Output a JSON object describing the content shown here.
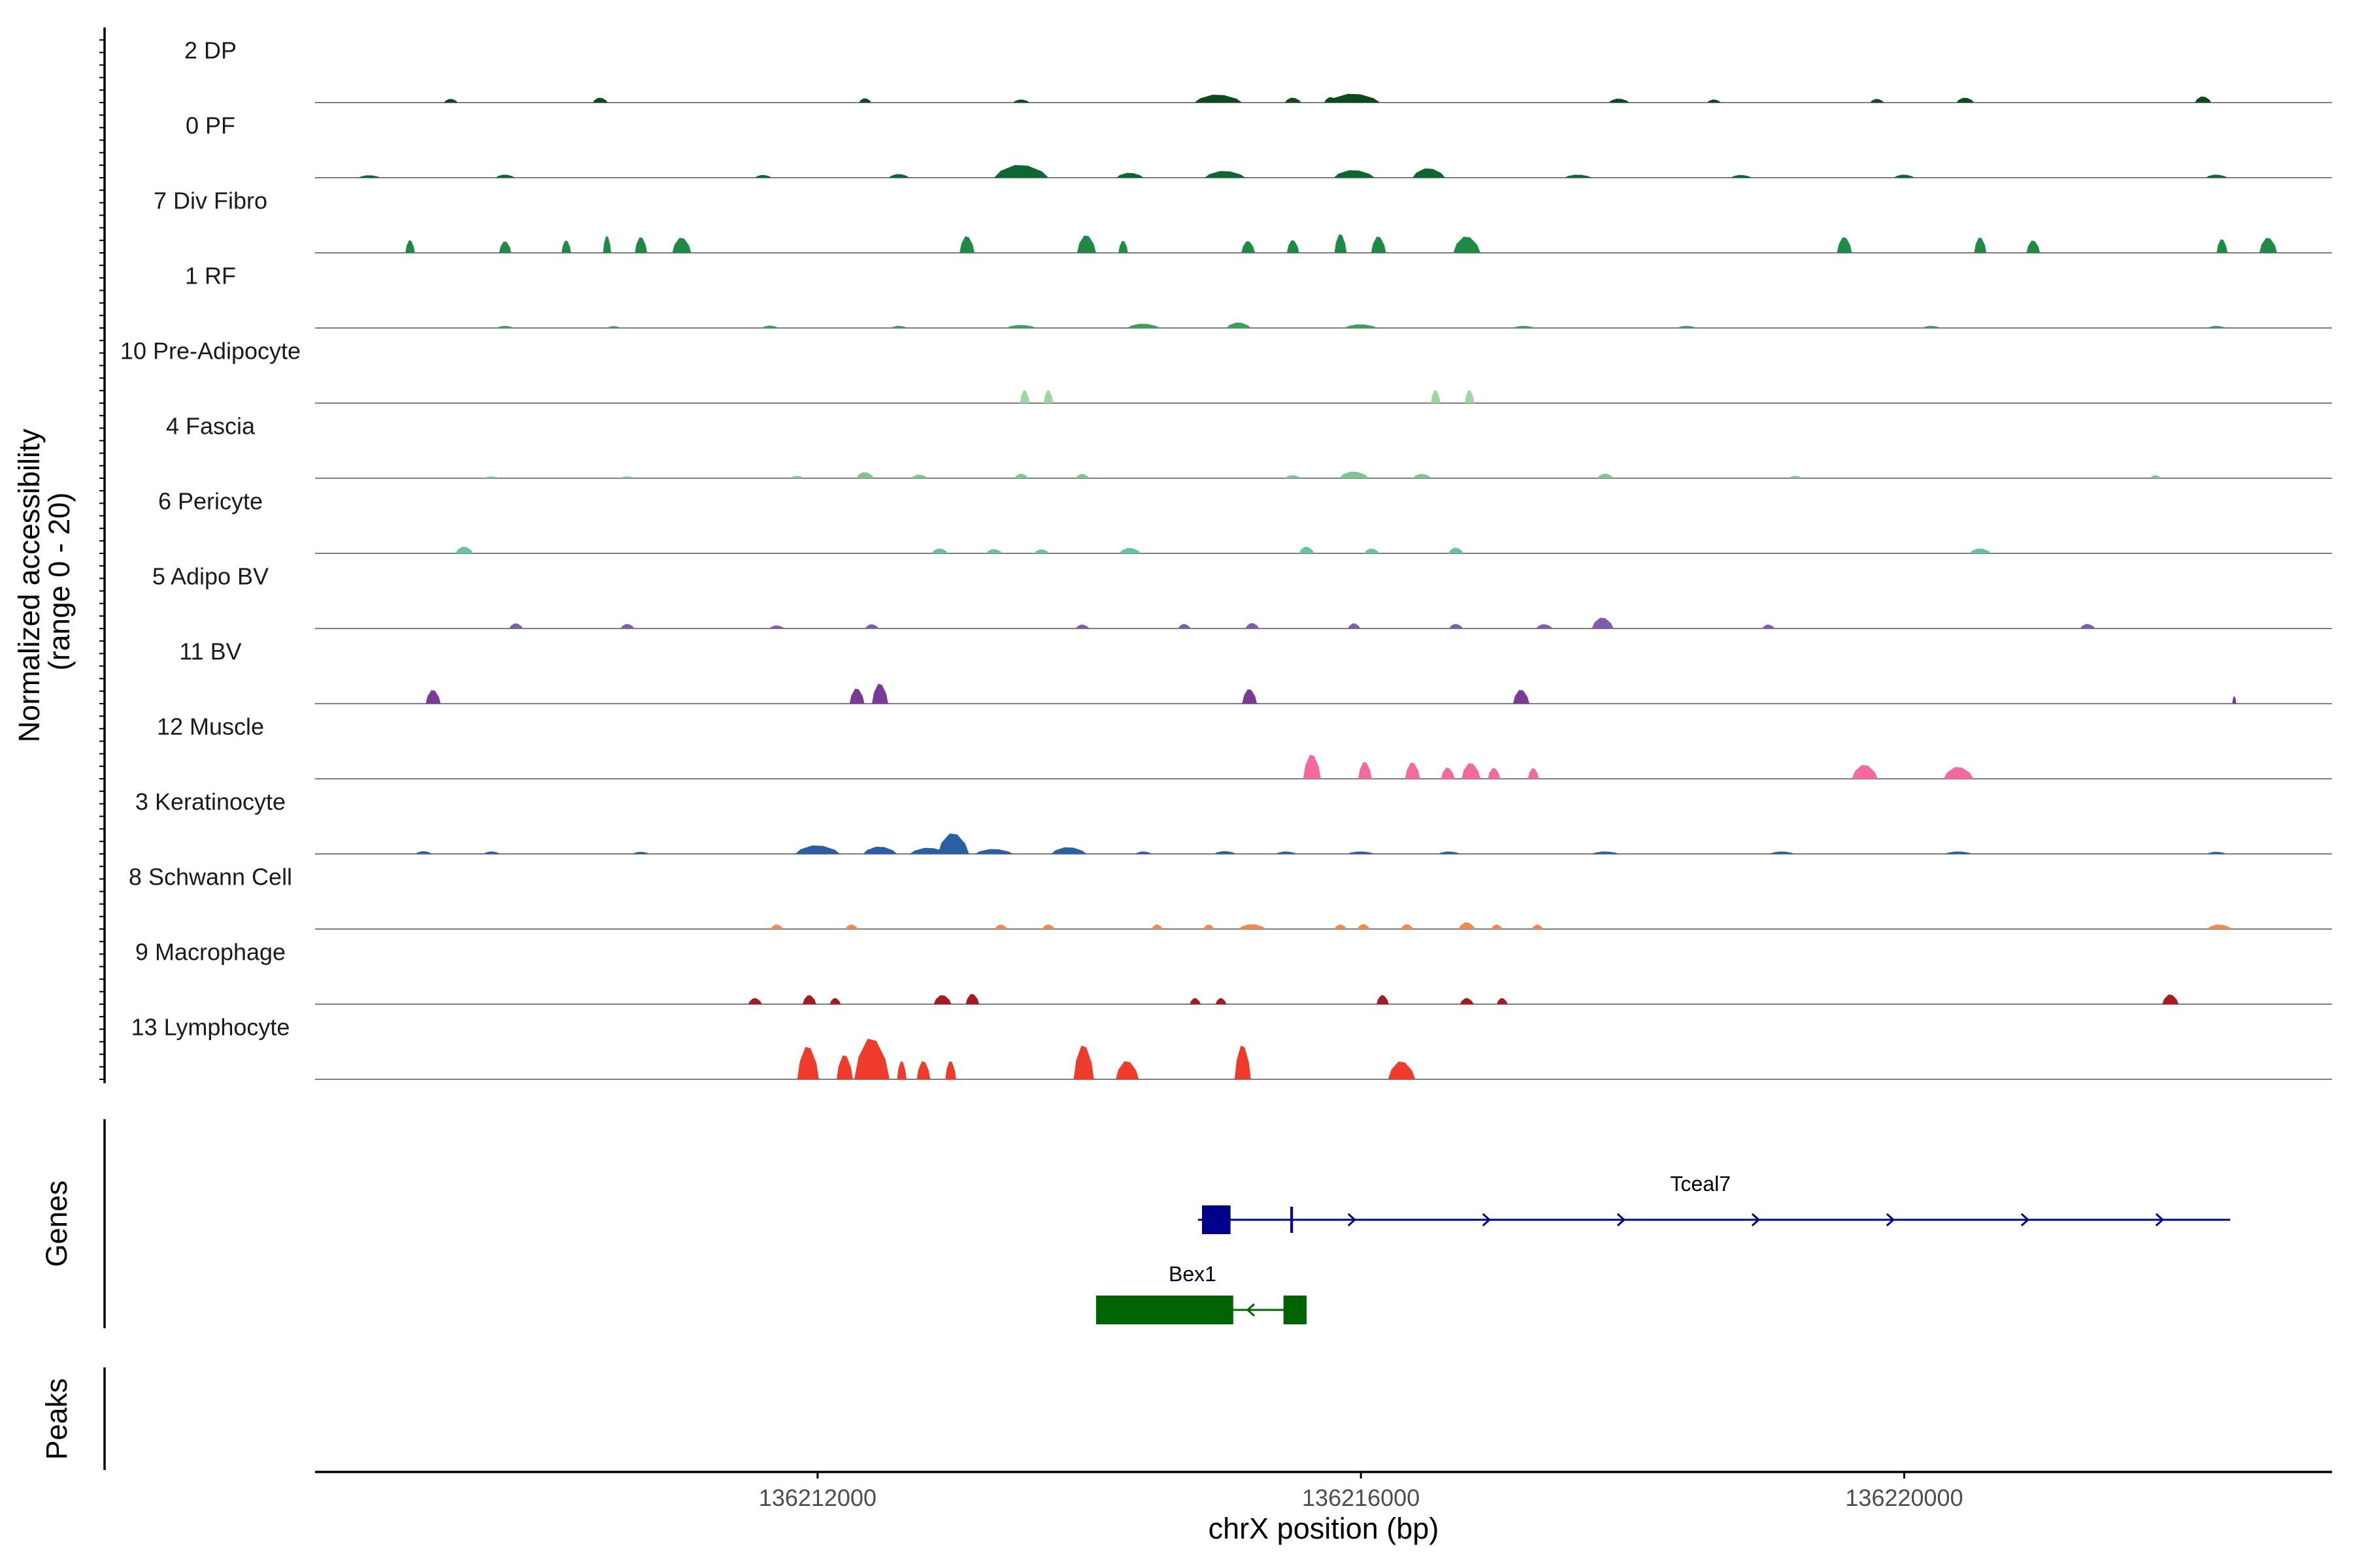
{
  "chart_data": {
    "type": "area",
    "chromosome": "chrX",
    "xlabel": "chrX position (bp)",
    "ylabel_line1": "Normalized accessibility",
    "ylabel_line2": "(range 0 - 20)",
    "ylim": [
      0,
      20
    ],
    "xlim": [
      136208300,
      136223150
    ],
    "xticks": [
      136212000,
      136216000,
      136220000
    ],
    "tick_labels": [
      "136212000",
      "136216000",
      "136220000"
    ],
    "series": [
      {
        "name": "2 DP",
        "color": "#0b4b1e",
        "peaks": [
          [
            136209300,
            100,
            1.2
          ],
          [
            136210400,
            110,
            1.6
          ],
          [
            136212350,
            90,
            1.4
          ],
          [
            136213500,
            120,
            1.0
          ],
          [
            136214950,
            350,
            2.6
          ],
          [
            136215500,
            120,
            1.6
          ],
          [
            136215780,
            100,
            1.8
          ],
          [
            136215950,
            380,
            2.9
          ],
          [
            136217900,
            150,
            1.3
          ],
          [
            136218600,
            100,
            1.0
          ],
          [
            136219800,
            100,
            1.2
          ],
          [
            136220450,
            130,
            1.6
          ],
          [
            136222200,
            120,
            2.0
          ]
        ]
      },
      {
        "name": "0 PF",
        "color": "#0f6631",
        "peaks": [
          [
            136208700,
            160,
            0.8
          ],
          [
            136209700,
            140,
            1.0
          ],
          [
            136211600,
            120,
            0.9
          ],
          [
            136212600,
            150,
            1.2
          ],
          [
            136213500,
            400,
            4.2
          ],
          [
            136214300,
            200,
            1.6
          ],
          [
            136215000,
            300,
            2.2
          ],
          [
            136215950,
            300,
            2.5
          ],
          [
            136216500,
            240,
            3.1
          ],
          [
            136217600,
            200,
            1.0
          ],
          [
            136218800,
            150,
            0.9
          ],
          [
            136220000,
            150,
            1.0
          ],
          [
            136222300,
            160,
            1.0
          ]
        ]
      },
      {
        "name": "7 Div Fibro",
        "color": "#1e8a45",
        "peaks": [
          [
            136209000,
            70,
            4.2
          ],
          [
            136209700,
            90,
            3.8
          ],
          [
            136210150,
            70,
            4.1
          ],
          [
            136210450,
            60,
            5.6
          ],
          [
            136210700,
            90,
            5.2
          ],
          [
            136211000,
            140,
            5.0
          ],
          [
            136213100,
            110,
            5.5
          ],
          [
            136213980,
            140,
            5.8
          ],
          [
            136214250,
            70,
            4.0
          ],
          [
            136215170,
            100,
            3.9
          ],
          [
            136215500,
            90,
            4.2
          ],
          [
            136215850,
            90,
            6.2
          ],
          [
            136216130,
            110,
            5.4
          ],
          [
            136216780,
            200,
            5.4
          ],
          [
            136219560,
            110,
            5.2
          ],
          [
            136220560,
            90,
            5.1
          ],
          [
            136220950,
            100,
            4.1
          ],
          [
            136222340,
            80,
            4.5
          ],
          [
            136222680,
            130,
            5.0
          ]
        ]
      },
      {
        "name": "1 RF",
        "color": "#3e9e5c",
        "peaks": [
          [
            136209700,
            120,
            0.7
          ],
          [
            136210500,
            100,
            0.6
          ],
          [
            136211650,
            120,
            0.8
          ],
          [
            136212600,
            120,
            0.7
          ],
          [
            136213500,
            220,
            1.0
          ],
          [
            136214400,
            240,
            1.4
          ],
          [
            136215100,
            180,
            1.8
          ],
          [
            136216000,
            240,
            1.2
          ],
          [
            136217200,
            160,
            0.7
          ],
          [
            136218400,
            140,
            0.7
          ],
          [
            136220200,
            130,
            0.7
          ],
          [
            136222300,
            130,
            0.7
          ]
        ]
      },
      {
        "name": "10 Pre-Adipocyte",
        "color": "#9fd69f",
        "peaks": [
          [
            136213525,
            70,
            4.3
          ],
          [
            136213700,
            70,
            4.3
          ],
          [
            136216550,
            70,
            4.3
          ],
          [
            136216800,
            70,
            4.3
          ]
        ]
      },
      {
        "name": "4 Fascia",
        "color": "#7fc493",
        "peaks": [
          [
            136209600,
            120,
            0.6
          ],
          [
            136210600,
            120,
            0.6
          ],
          [
            136211850,
            100,
            0.8
          ],
          [
            136212350,
            130,
            2.0
          ],
          [
            136212750,
            120,
            1.2
          ],
          [
            136213500,
            100,
            1.5
          ],
          [
            136213950,
            100,
            1.4
          ],
          [
            136215500,
            120,
            1.0
          ],
          [
            136215950,
            220,
            2.2
          ],
          [
            136216450,
            140,
            1.4
          ],
          [
            136217800,
            120,
            1.5
          ],
          [
            136219200,
            100,
            0.8
          ],
          [
            136221850,
            80,
            1.0
          ]
        ]
      },
      {
        "name": "6 Pericyte",
        "color": "#66c2a5",
        "peaks": [
          [
            136209400,
            130,
            2.2
          ],
          [
            136212900,
            120,
            1.6
          ],
          [
            136213300,
            120,
            1.4
          ],
          [
            136213650,
            110,
            1.3
          ],
          [
            136214300,
            160,
            1.8
          ],
          [
            136215600,
            110,
            2.2
          ],
          [
            136216080,
            110,
            1.6
          ],
          [
            136216700,
            110,
            1.9
          ],
          [
            136220560,
            160,
            1.6
          ]
        ]
      },
      {
        "name": "5 Adipo BV",
        "color": "#7c5eac",
        "peaks": [
          [
            136209780,
            100,
            1.7
          ],
          [
            136210600,
            100,
            1.5
          ],
          [
            136211700,
            110,
            1.0
          ],
          [
            136212400,
            100,
            1.4
          ],
          [
            136213950,
            100,
            1.3
          ],
          [
            136214700,
            90,
            1.5
          ],
          [
            136215200,
            100,
            1.8
          ],
          [
            136215950,
            90,
            1.7
          ],
          [
            136216700,
            100,
            1.5
          ],
          [
            136217350,
            120,
            1.4
          ],
          [
            136217780,
            160,
            3.6
          ],
          [
            136219000,
            90,
            1.3
          ],
          [
            136221350,
            110,
            1.5
          ]
        ]
      },
      {
        "name": "11 BV",
        "color": "#7a3a96",
        "peaks": [
          [
            136209170,
            110,
            4.5
          ],
          [
            136212290,
            110,
            5.0
          ],
          [
            136212460,
            120,
            6.6
          ],
          [
            136215180,
            110,
            4.8
          ],
          [
            136217180,
            120,
            4.6
          ],
          [
            136222430,
            30,
            2.5
          ]
        ]
      },
      {
        "name": "12 Muscle",
        "color": "#f46aa0",
        "peaks": [
          [
            136215640,
            130,
            8.0
          ],
          [
            136216030,
            100,
            5.6
          ],
          [
            136216380,
            110,
            5.4
          ],
          [
            136216640,
            100,
            3.7
          ],
          [
            136216810,
            140,
            5.2
          ],
          [
            136216980,
            90,
            3.6
          ],
          [
            136217270,
            80,
            3.5
          ],
          [
            136219710,
            190,
            4.6
          ],
          [
            136220400,
            220,
            3.9
          ]
        ]
      },
      {
        "name": "3 Keratinocyte",
        "color": "#2b5fa4",
        "peaks": [
          [
            136209100,
            120,
            0.9
          ],
          [
            136209600,
            120,
            0.8
          ],
          [
            136210700,
            120,
            0.7
          ],
          [
            136212000,
            330,
            2.8
          ],
          [
            136212460,
            250,
            2.4
          ],
          [
            136212820,
            280,
            2.0
          ],
          [
            136213000,
            230,
            6.8
          ],
          [
            136213300,
            280,
            1.6
          ],
          [
            136213850,
            260,
            2.2
          ],
          [
            136214400,
            120,
            0.8
          ],
          [
            136215000,
            160,
            0.9
          ],
          [
            136215450,
            150,
            0.8
          ],
          [
            136216000,
            200,
            0.8
          ],
          [
            136216650,
            160,
            0.8
          ],
          [
            136217800,
            200,
            0.8
          ],
          [
            136219100,
            180,
            0.8
          ],
          [
            136220400,
            200,
            0.8
          ],
          [
            136222300,
            140,
            0.7
          ]
        ]
      },
      {
        "name": "8 Schwann Cell",
        "color": "#ee8a50",
        "peaks": [
          [
            136211700,
            90,
            1.5
          ],
          [
            136212250,
            90,
            1.5
          ],
          [
            136213350,
            90,
            1.5
          ],
          [
            136213700,
            90,
            1.5
          ],
          [
            136214500,
            80,
            1.5
          ],
          [
            136214880,
            80,
            1.5
          ],
          [
            136215200,
            200,
            1.6
          ],
          [
            136215850,
            90,
            1.5
          ],
          [
            136216020,
            90,
            1.6
          ],
          [
            136216340,
            90,
            1.6
          ],
          [
            136216780,
            120,
            2.2
          ],
          [
            136217000,
            80,
            1.5
          ],
          [
            136217300,
            80,
            1.5
          ],
          [
            136222320,
            180,
            1.5
          ]
        ]
      },
      {
        "name": "9 Macrophage",
        "color": "#a61b22",
        "peaks": [
          [
            136211540,
            100,
            2.0
          ],
          [
            136211940,
            100,
            3.0
          ],
          [
            136212130,
            80,
            2.0
          ],
          [
            136212920,
            130,
            3.0
          ],
          [
            136213140,
            100,
            3.4
          ],
          [
            136214780,
            80,
            2.0
          ],
          [
            136214970,
            80,
            2.0
          ],
          [
            136216160,
            90,
            3.0
          ],
          [
            136216780,
            100,
            2.0
          ],
          [
            136217040,
            80,
            2.0
          ],
          [
            136221960,
            120,
            3.2
          ]
        ]
      },
      {
        "name": "13 Lymphocyte",
        "color": "#ee3b2c",
        "peaks": [
          [
            136211930,
            160,
            10.8
          ],
          [
            136212200,
            120,
            8.0
          ],
          [
            136212400,
            260,
            13.5
          ],
          [
            136212620,
            70,
            6.0
          ],
          [
            136212780,
            100,
            6.0
          ],
          [
            136212980,
            80,
            6.0
          ],
          [
            136213960,
            150,
            11.2
          ],
          [
            136214280,
            170,
            6.0
          ],
          [
            136215130,
            120,
            11.2
          ],
          [
            136216300,
            200,
            5.9
          ]
        ]
      }
    ],
    "genes": [
      {
        "name": "Tceal7",
        "color": "#00008b",
        "strand": "+",
        "start": 136214800,
        "end": 136222400,
        "exons": [
          [
            136214830,
            136215040
          ],
          [
            136215480,
            136215500
          ]
        ]
      },
      {
        "name": "Bex1",
        "color": "#006400",
        "strand": "-",
        "start": 136214050,
        "end": 136215600,
        "exons": [
          [
            136214050,
            136215060
          ],
          [
            136215430,
            136215600
          ]
        ]
      }
    ],
    "panels": {
      "genes_label": "Genes",
      "peaks_label": "Peaks"
    }
  }
}
